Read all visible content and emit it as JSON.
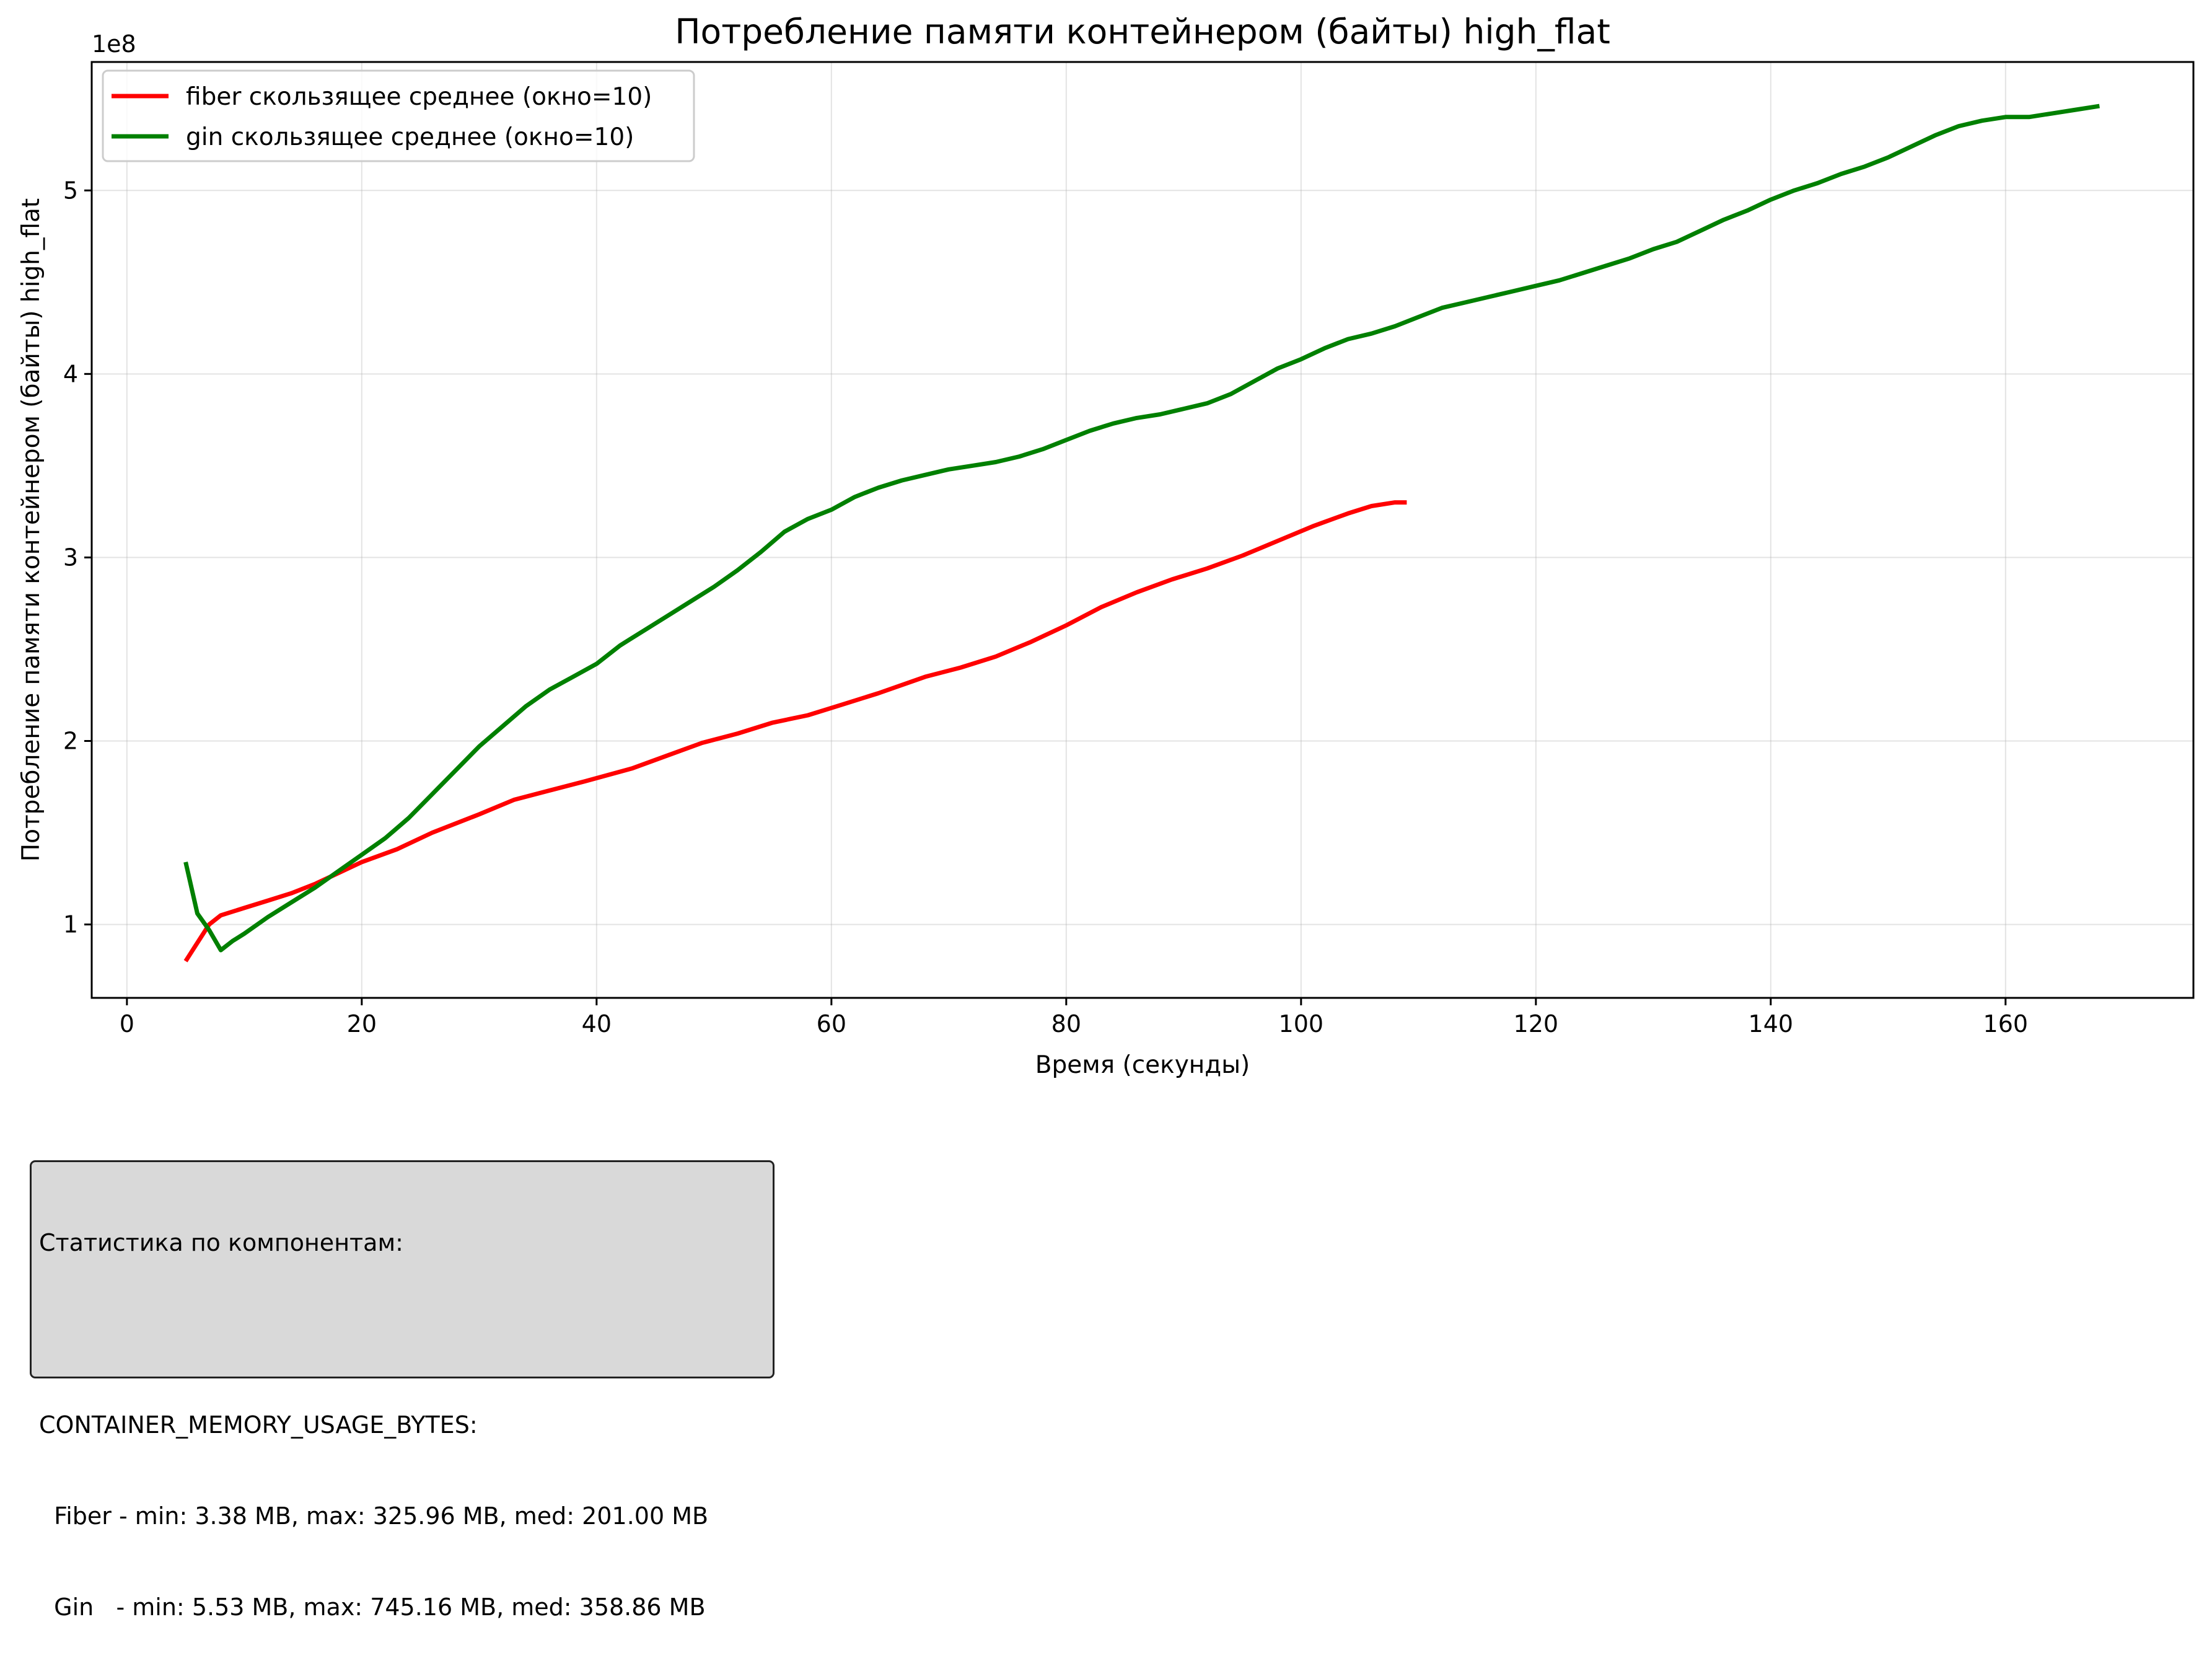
{
  "chart_data": {
    "type": "line",
    "title": "Потребление памяти контейнером  (байты) high_flat",
    "xlabel": "Время (секунды)",
    "ylabel": "Потребление памяти контейнером  (байты) high_flat",
    "y_offset_label": "1e8",
    "xlim": [
      -3,
      176
    ],
    "ylim": [
      0.6,
      5.7
    ],
    "y_scale": 100000000.0,
    "xticks": [
      0,
      20,
      40,
      60,
      80,
      100,
      120,
      140,
      160
    ],
    "yticks": [
      1,
      2,
      3,
      4,
      5
    ],
    "grid": true,
    "legend_position": "top-left",
    "series": [
      {
        "name": "fiber скользящее среднее (окно=10)",
        "color": "#ff0000",
        "x": [
          5,
          6,
          7,
          8,
          10,
          12,
          14,
          16,
          18,
          20,
          23,
          26,
          30,
          33,
          36,
          39,
          43,
          46,
          49,
          52,
          55,
          58,
          61,
          64,
          68,
          71,
          74,
          77,
          80,
          83,
          86,
          89,
          92,
          95,
          98,
          101,
          104,
          106,
          108,
          109
        ],
        "y": [
          0.8,
          0.9,
          1.0,
          1.05,
          1.09,
          1.13,
          1.17,
          1.22,
          1.28,
          1.34,
          1.41,
          1.5,
          1.6,
          1.68,
          1.73,
          1.78,
          1.85,
          1.92,
          1.99,
          2.04,
          2.1,
          2.14,
          2.2,
          2.26,
          2.35,
          2.4,
          2.46,
          2.54,
          2.63,
          2.73,
          2.81,
          2.88,
          2.94,
          3.01,
          3.09,
          3.17,
          3.24,
          3.28,
          3.3,
          3.3
        ]
      },
      {
        "name": "gin скользящее среднее (окно=10)",
        "color": "#008000",
        "x": [
          5,
          6,
          7,
          8,
          9,
          10,
          12,
          14,
          16,
          18,
          20,
          22,
          24,
          26,
          28,
          30,
          32,
          34,
          36,
          38,
          40,
          42,
          44,
          46,
          48,
          50,
          52,
          54,
          56,
          58,
          60,
          62,
          64,
          66,
          68,
          70,
          72,
          74,
          76,
          78,
          80,
          82,
          84,
          86,
          88,
          90,
          92,
          94,
          96,
          98,
          100,
          102,
          104,
          106,
          108,
          110,
          112,
          114,
          116,
          118,
          120,
          122,
          124,
          126,
          128,
          130,
          132,
          134,
          136,
          138,
          140,
          142,
          144,
          146,
          148,
          150,
          152,
          154,
          156,
          158,
          160,
          161,
          162,
          164,
          166,
          168
        ],
        "y": [
          1.34,
          1.06,
          0.97,
          0.86,
          0.91,
          0.95,
          1.04,
          1.12,
          1.2,
          1.29,
          1.38,
          1.47,
          1.58,
          1.71,
          1.84,
          1.97,
          2.08,
          2.19,
          2.28,
          2.35,
          2.42,
          2.52,
          2.6,
          2.68,
          2.76,
          2.84,
          2.93,
          3.03,
          3.14,
          3.21,
          3.26,
          3.33,
          3.38,
          3.42,
          3.45,
          3.48,
          3.5,
          3.52,
          3.55,
          3.59,
          3.64,
          3.69,
          3.73,
          3.76,
          3.78,
          3.81,
          3.84,
          3.89,
          3.96,
          4.03,
          4.08,
          4.14,
          4.19,
          4.22,
          4.26,
          4.31,
          4.36,
          4.39,
          4.42,
          4.45,
          4.48,
          4.51,
          4.55,
          4.59,
          4.63,
          4.68,
          4.72,
          4.78,
          4.84,
          4.89,
          4.95,
          5.0,
          5.04,
          5.09,
          5.13,
          5.18,
          5.24,
          5.3,
          5.35,
          5.38,
          5.4,
          5.4,
          5.4,
          5.42,
          5.44,
          5.46
        ]
      }
    ]
  },
  "stats": {
    "title": "Статистика по компонентам:",
    "metric": "CONTAINER_MEMORY_USAGE_BYTES:",
    "fiber_line": "  Fiber - min: 3.38 MB, max: 325.96 MB, med: 201.00 MB",
    "gin_line": "  Gin   - min: 5.53 MB, max: 745.16 MB, med: 358.86 MB"
  }
}
